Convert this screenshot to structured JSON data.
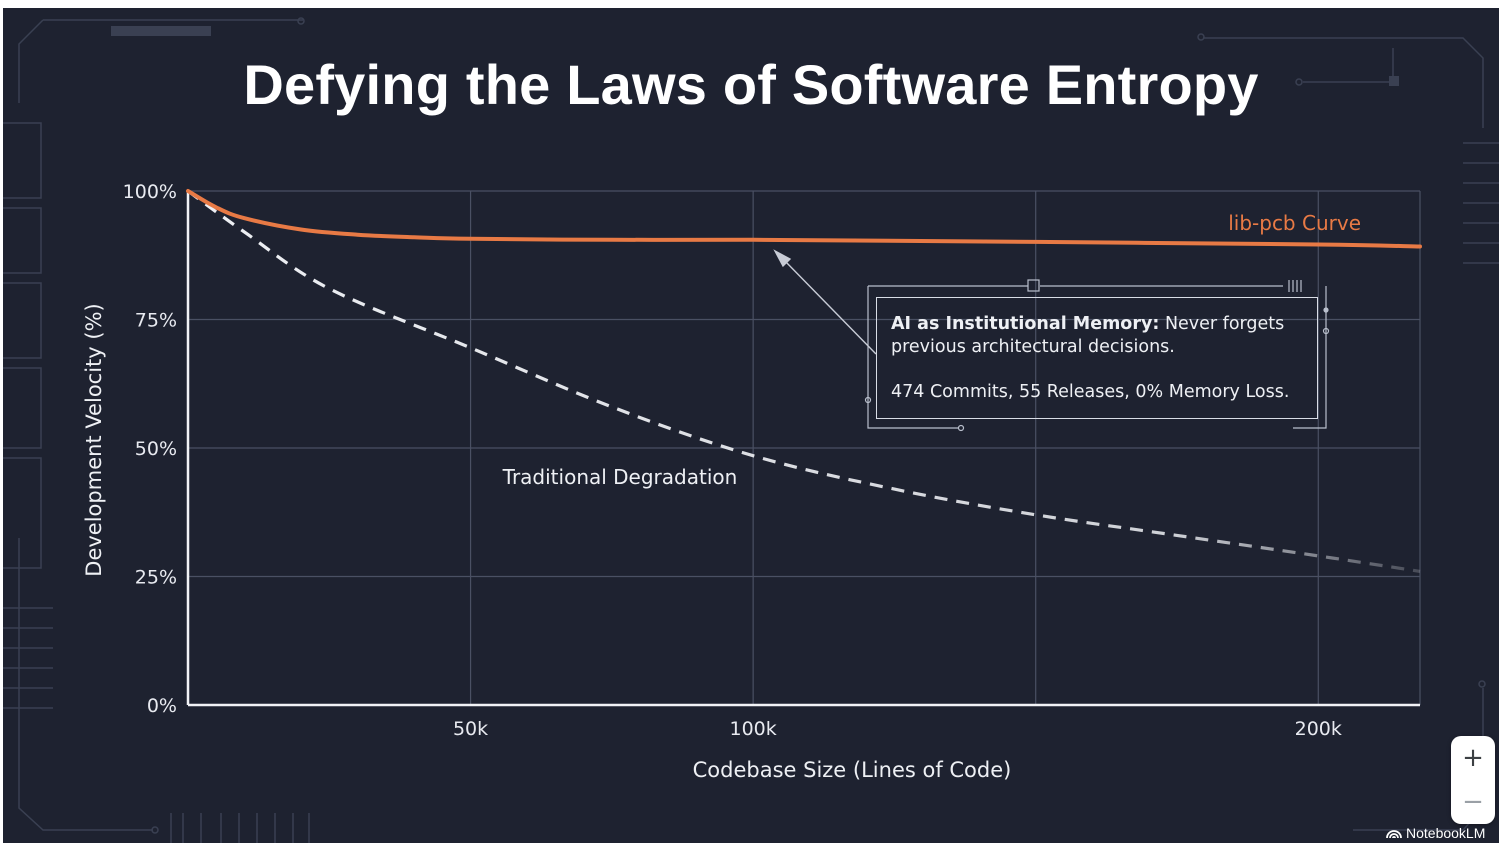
{
  "slide": {
    "title": "Defying the Laws of Software Entropy"
  },
  "callout": {
    "heading": "AI as Institutional Memory:",
    "text": " Never forgets previous architectural decisions.",
    "stats": "474 Commits, 55 Releases, 0% Memory Loss."
  },
  "viewer": {
    "zoom_in": "+",
    "zoom_out": "−",
    "brand": "NotebookLM"
  },
  "colors": {
    "background": "#1e2230",
    "accent": "#e87a45",
    "dashed": "#e6e8ee",
    "grid": "#4a5063"
  },
  "chart_data": {
    "type": "line",
    "xlabel": "Codebase Size (Lines of Code)",
    "ylabel": "Development Velocity (%)",
    "xlim": [
      0,
      218000
    ],
    "ylim": [
      0,
      100
    ],
    "x_ticks": [
      {
        "value": 50000,
        "label": "50k"
      },
      {
        "value": 100000,
        "label": "100k"
      },
      {
        "value": 150000,
        "label": ""
      },
      {
        "value": 200000,
        "label": "200k"
      }
    ],
    "y_ticks": [
      {
        "value": 0,
        "label": "0%"
      },
      {
        "value": 25,
        "label": "25%"
      },
      {
        "value": 50,
        "label": "50%"
      },
      {
        "value": 75,
        "label": "75%"
      },
      {
        "value": 100,
        "label": "100%"
      }
    ],
    "grid": true,
    "series": [
      {
        "name": "lib-pcb Curve",
        "style": "solid",
        "color": "#e87a45",
        "x": [
          0,
          5000,
          10000,
          20000,
          30000,
          40000,
          50000,
          75000,
          100000,
          150000,
          200000,
          218000
        ],
        "y": [
          100,
          96.8,
          94.7,
          92.5,
          91.5,
          91.0,
          90.7,
          90.5,
          90.5,
          90.1,
          89.6,
          89.2
        ]
      },
      {
        "name": "Traditional Degradation",
        "style": "dashed",
        "color": "#e6e8ee",
        "x": [
          0,
          10000,
          25000,
          50000,
          75000,
          100000,
          125000,
          150000,
          175000,
          200000,
          218000
        ],
        "y": [
          100,
          92,
          81,
          69.5,
          58,
          48.5,
          42,
          37,
          33,
          29,
          26
        ]
      }
    ],
    "annotations": [
      {
        "text": "AI as Institutional Memory",
        "arrow_to": {
          "x": 105000,
          "y": 88
        }
      }
    ]
  }
}
